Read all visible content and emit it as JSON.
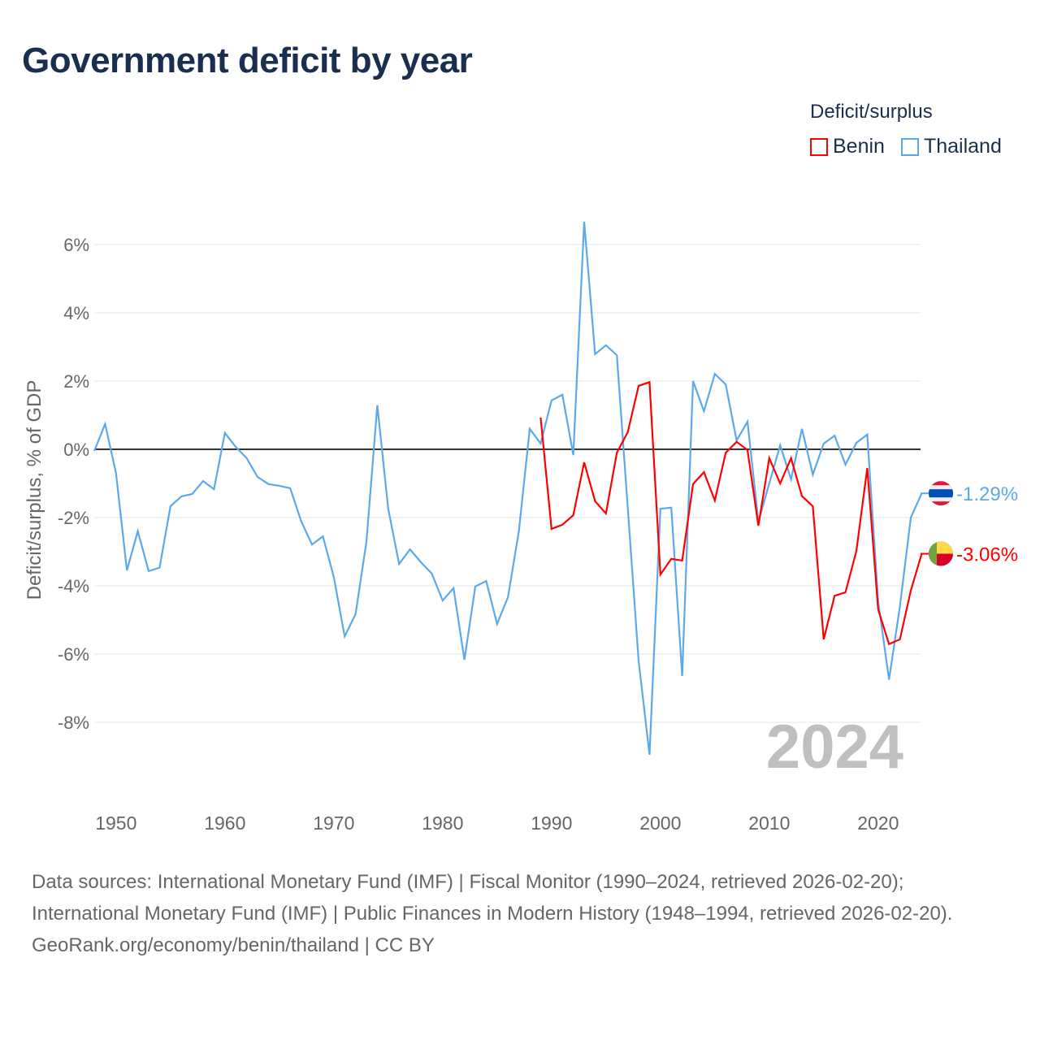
{
  "title": "Government deficit by year",
  "legend": {
    "title": "Deficit/surplus",
    "items": [
      {
        "name": "Benin",
        "color": "#ff0000"
      },
      {
        "name": "Thailand",
        "color": "#5ca8ec"
      }
    ]
  },
  "watermark_year": "2024",
  "footer": {
    "sources": "Data sources: International Monetary Fund (IMF) | Fiscal Monitor (1990–2024, retrieved 2026-02-20); International Monetary Fund (IMF) | Public Finances in Modern History (1948–1994, retrieved 2026-02-20).",
    "credit": "GeoRank.org/economy/benin/thailand | CC BY"
  },
  "chart_data": {
    "type": "line",
    "title": "Government deficit by year",
    "xlabel": "",
    "ylabel": "Deficit/surplus, % of GDP",
    "xlim": [
      1948,
      2024
    ],
    "ylim": [
      -10,
      7
    ],
    "x_ticks": [
      1950,
      1960,
      1970,
      1980,
      1990,
      2000,
      2010,
      2020
    ],
    "x_tick_labels": [
      "1950",
      "1960",
      "1970",
      "1980",
      "1990",
      "2000",
      "2010",
      "2020"
    ],
    "y_ticks": [
      6,
      4,
      2,
      0,
      -2,
      -4,
      -6,
      -8
    ],
    "y_tick_labels": [
      "6%",
      "4%",
      "2%",
      "0%",
      "-2%",
      "-4%",
      "-6%",
      "-8%"
    ],
    "grid": true,
    "legend_position": "top-right",
    "series": [
      {
        "name": "Benin",
        "color": "#ff0000",
        "end_label": "-3.06%",
        "flag": "benin",
        "start_year": 1989,
        "values": [
          0.93,
          -2.33,
          -2.21,
          -1.93,
          -0.38,
          -1.52,
          -1.88,
          -0.1,
          0.5,
          1.86,
          1.97,
          -3.67,
          -3.21,
          -3.26,
          -1.02,
          -0.67,
          -1.5,
          -0.1,
          0.22,
          -0.02,
          -2.24,
          -0.26,
          -1.0,
          -0.26,
          -1.37,
          -1.67,
          -5.57,
          -4.29,
          -4.19,
          -2.98,
          -0.55,
          -4.69,
          -5.71,
          -5.57,
          -4.14,
          -3.06
        ]
      },
      {
        "name": "Thailand",
        "color": "#5ca8ec",
        "end_label": "-1.29%",
        "flag": "thailand",
        "start_year": 1948,
        "values": [
          -0.05,
          0.74,
          -0.7,
          -3.55,
          -2.4,
          -3.57,
          -3.47,
          -1.67,
          -1.38,
          -1.31,
          -0.93,
          -1.17,
          0.48,
          0.07,
          -0.26,
          -0.81,
          -1.02,
          -1.07,
          -1.14,
          -2.1,
          -2.79,
          -2.55,
          -3.74,
          -5.48,
          -4.83,
          -2.71,
          1.29,
          -1.74,
          -3.36,
          -2.93,
          -3.31,
          -3.64,
          -4.43,
          -4.07,
          -6.17,
          -4.02,
          -3.86,
          -5.12,
          -4.33,
          -2.4,
          0.6,
          0.17,
          1.43,
          1.6,
          -0.17,
          6.67,
          2.79,
          3.05,
          2.76,
          -1.7,
          -6.2,
          -8.95,
          -1.74,
          -1.71,
          -6.64,
          2.0,
          1.12,
          2.21,
          1.9,
          0.26,
          0.81,
          -2.12,
          -1.0,
          0.12,
          -0.88,
          0.6,
          -0.74,
          0.17,
          0.4,
          -0.45,
          0.19,
          0.43,
          -4.45,
          -6.75,
          -4.6,
          -2.0,
          -1.29
        ]
      }
    ]
  }
}
